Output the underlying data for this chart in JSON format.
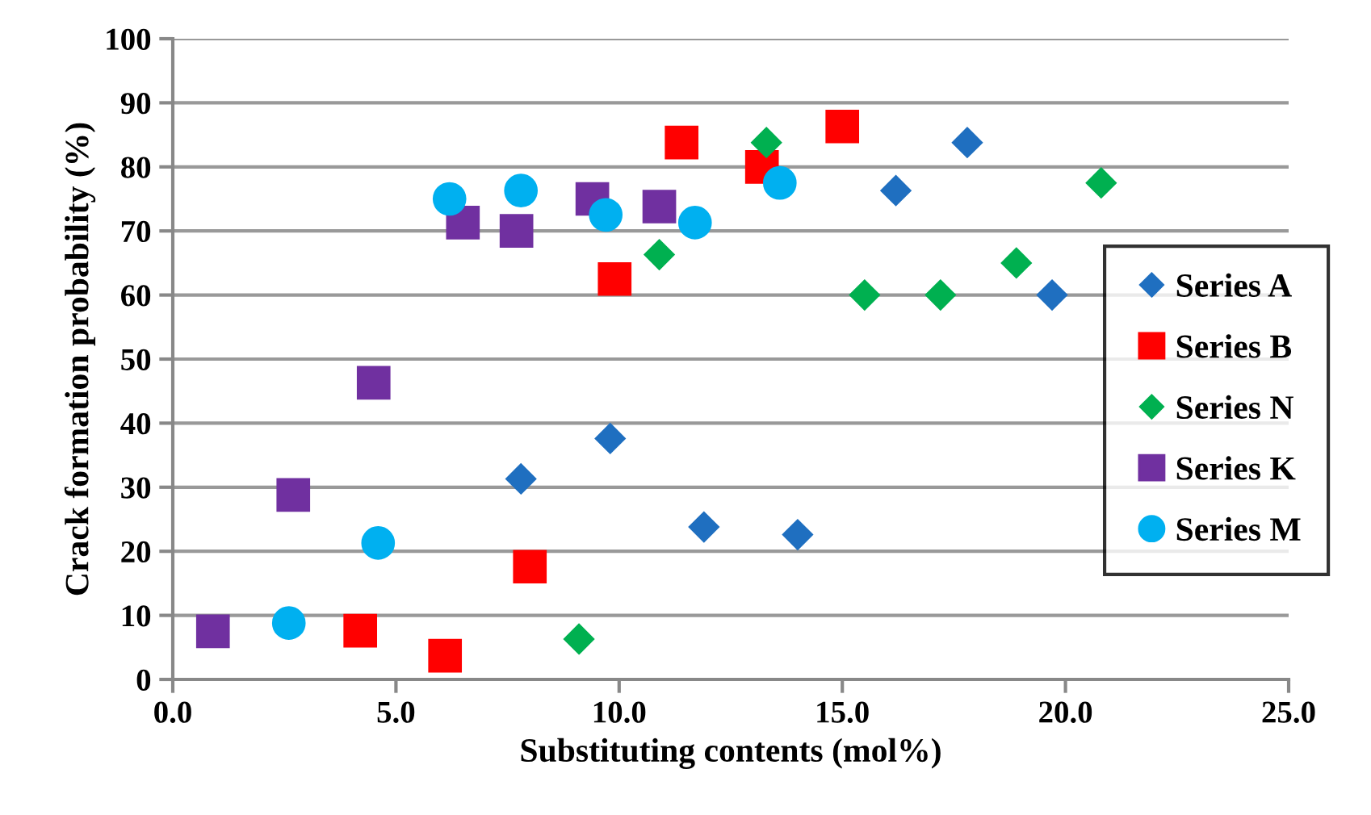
{
  "chart_data": {
    "type": "scatter",
    "xlabel": "Substituting contents (mol%)",
    "ylabel": "Crack formation probability (%)",
    "xlim": [
      0,
      25
    ],
    "ylim": [
      0,
      100
    ],
    "xticks": [
      {
        "value": 0,
        "label": "0.0"
      },
      {
        "value": 5,
        "label": "5.0"
      },
      {
        "value": 10,
        "label": "10.0"
      },
      {
        "value": 15,
        "label": "15.0"
      },
      {
        "value": 20,
        "label": "20.0"
      },
      {
        "value": 25,
        "label": "25.0"
      }
    ],
    "yticks": [
      0,
      10,
      20,
      30,
      40,
      50,
      60,
      70,
      80,
      90,
      100
    ],
    "grid": "y",
    "legend": "right",
    "series": [
      {
        "name": "Series A",
        "color": "#1f6fc0",
        "marker": "diamond",
        "x": [
          7.8,
          9.8,
          11.9,
          14.0,
          16.2,
          17.8,
          19.7
        ],
        "values": [
          31.3,
          37.6,
          23.8,
          22.6,
          76.3,
          83.8,
          60.0
        ]
      },
      {
        "name": "Series B",
        "color": "#ff0000",
        "marker": "square",
        "x": [
          4.2,
          6.1,
          8.0,
          9.9,
          11.4,
          13.2,
          15.0
        ],
        "values": [
          7.6,
          3.7,
          17.6,
          62.5,
          83.8,
          80.0,
          86.3
        ]
      },
      {
        "name": "Series N",
        "color": "#00b050",
        "marker": "diamond",
        "x": [
          9.1,
          10.9,
          13.3,
          15.5,
          17.2,
          18.9,
          20.8
        ],
        "values": [
          6.3,
          66.3,
          83.8,
          60.0,
          60.0,
          65.0,
          77.5
        ]
      },
      {
        "name": "Series K",
        "color": "#7030a0",
        "marker": "square",
        "x": [
          0.9,
          2.7,
          4.5,
          6.5,
          7.7,
          9.4,
          10.9
        ],
        "values": [
          7.5,
          28.8,
          46.3,
          71.3,
          70.0,
          75.0,
          73.8
        ]
      },
      {
        "name": "Series M",
        "color": "#00b0f0",
        "marker": "circle",
        "x": [
          2.6,
          4.6,
          6.2,
          7.8,
          9.7,
          11.7,
          13.6
        ],
        "values": [
          8.8,
          21.3,
          75.0,
          76.3,
          72.5,
          71.3,
          77.5
        ]
      }
    ]
  }
}
